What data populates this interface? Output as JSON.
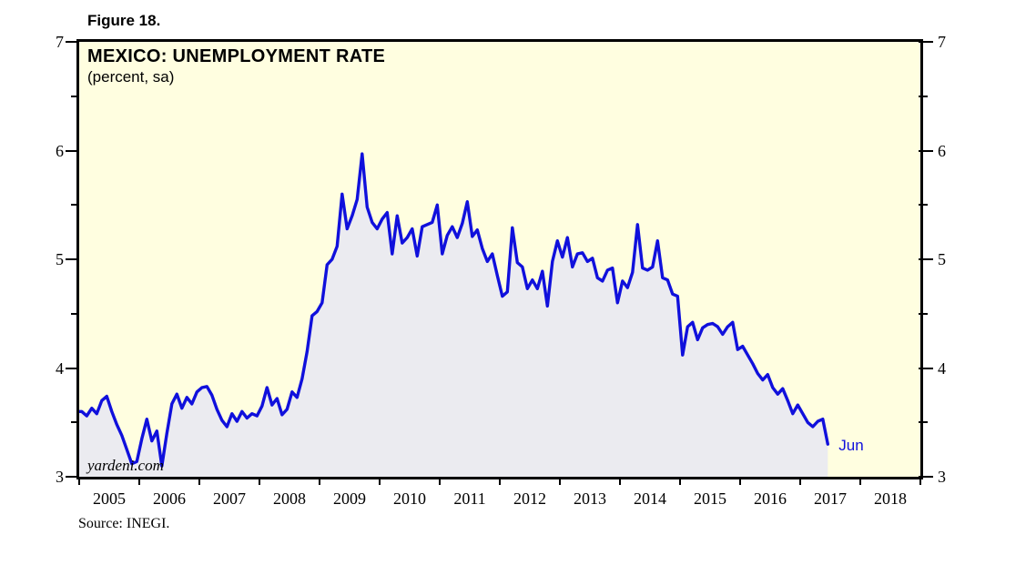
{
  "figure_label": "Figure 18.",
  "chart_data": {
    "type": "line",
    "title": "MEXICO: UNEMPLOYMENT RATE",
    "subtitle": "(percent, sa)",
    "watermark": "yardeni.com",
    "source": "Source: INEGI.",
    "end_point_label": "Jun",
    "frequency": "monthly",
    "x_start": "2005-01",
    "x_end": "2017-06",
    "ylim": [
      3,
      7
    ],
    "y_major_ticks": [
      3,
      4,
      5,
      6,
      7
    ],
    "y_minor_ticks": [
      3.5,
      4.5,
      5.5,
      6.5
    ],
    "x_axis_years": [
      2005,
      2006,
      2007,
      2008,
      2009,
      2010,
      2011,
      2012,
      2013,
      2014,
      2015,
      2016,
      2017,
      2018
    ],
    "x_axis_span_years": 14,
    "grid": "off",
    "legend": "none",
    "series": [
      {
        "name": "Mexico unemployment rate (percent, seasonally adjusted)",
        "values": [
          3.6,
          3.56,
          3.63,
          3.58,
          3.7,
          3.74,
          3.6,
          3.48,
          3.38,
          3.25,
          3.12,
          3.14,
          3.35,
          3.53,
          3.33,
          3.42,
          3.1,
          3.4,
          3.67,
          3.76,
          3.63,
          3.73,
          3.67,
          3.78,
          3.82,
          3.83,
          3.75,
          3.62,
          3.52,
          3.46,
          3.58,
          3.51,
          3.6,
          3.54,
          3.58,
          3.56,
          3.65,
          3.82,
          3.66,
          3.72,
          3.57,
          3.62,
          3.78,
          3.73,
          3.9,
          4.15,
          4.48,
          4.52,
          4.6,
          4.95,
          5.0,
          5.12,
          5.6,
          5.28,
          5.4,
          5.55,
          5.97,
          5.48,
          5.34,
          5.28,
          5.37,
          5.43,
          5.05,
          5.4,
          5.15,
          5.2,
          5.28,
          5.03,
          5.3,
          5.32,
          5.34,
          5.5,
          5.05,
          5.22,
          5.3,
          5.2,
          5.33,
          5.53,
          5.21,
          5.27,
          5.1,
          4.98,
          5.05,
          4.85,
          4.66,
          4.7,
          5.29,
          4.97,
          4.93,
          4.73,
          4.81,
          4.73,
          4.89,
          4.57,
          4.98,
          5.17,
          5.02,
          5.2,
          4.93,
          5.05,
          5.06,
          4.98,
          5.01,
          4.83,
          4.8,
          4.9,
          4.92,
          4.6,
          4.8,
          4.74,
          4.88,
          5.32,
          4.92,
          4.9,
          4.93,
          5.17,
          4.83,
          4.81,
          4.68,
          4.66,
          4.12,
          4.38,
          4.42,
          4.26,
          4.37,
          4.4,
          4.41,
          4.38,
          4.31,
          4.38,
          4.42,
          4.17,
          4.2,
          4.12,
          4.04,
          3.95,
          3.89,
          3.94,
          3.82,
          3.76,
          3.81,
          3.7,
          3.58,
          3.66,
          3.58,
          3.5,
          3.46,
          3.51,
          3.53,
          3.3
        ]
      }
    ],
    "colors": {
      "line": "#1010dc",
      "area_fill": "#ebebf0",
      "plot_background": "#fffee0",
      "axis": "#000000",
      "text": "#000000",
      "end_label_text": "#1010dc"
    }
  }
}
